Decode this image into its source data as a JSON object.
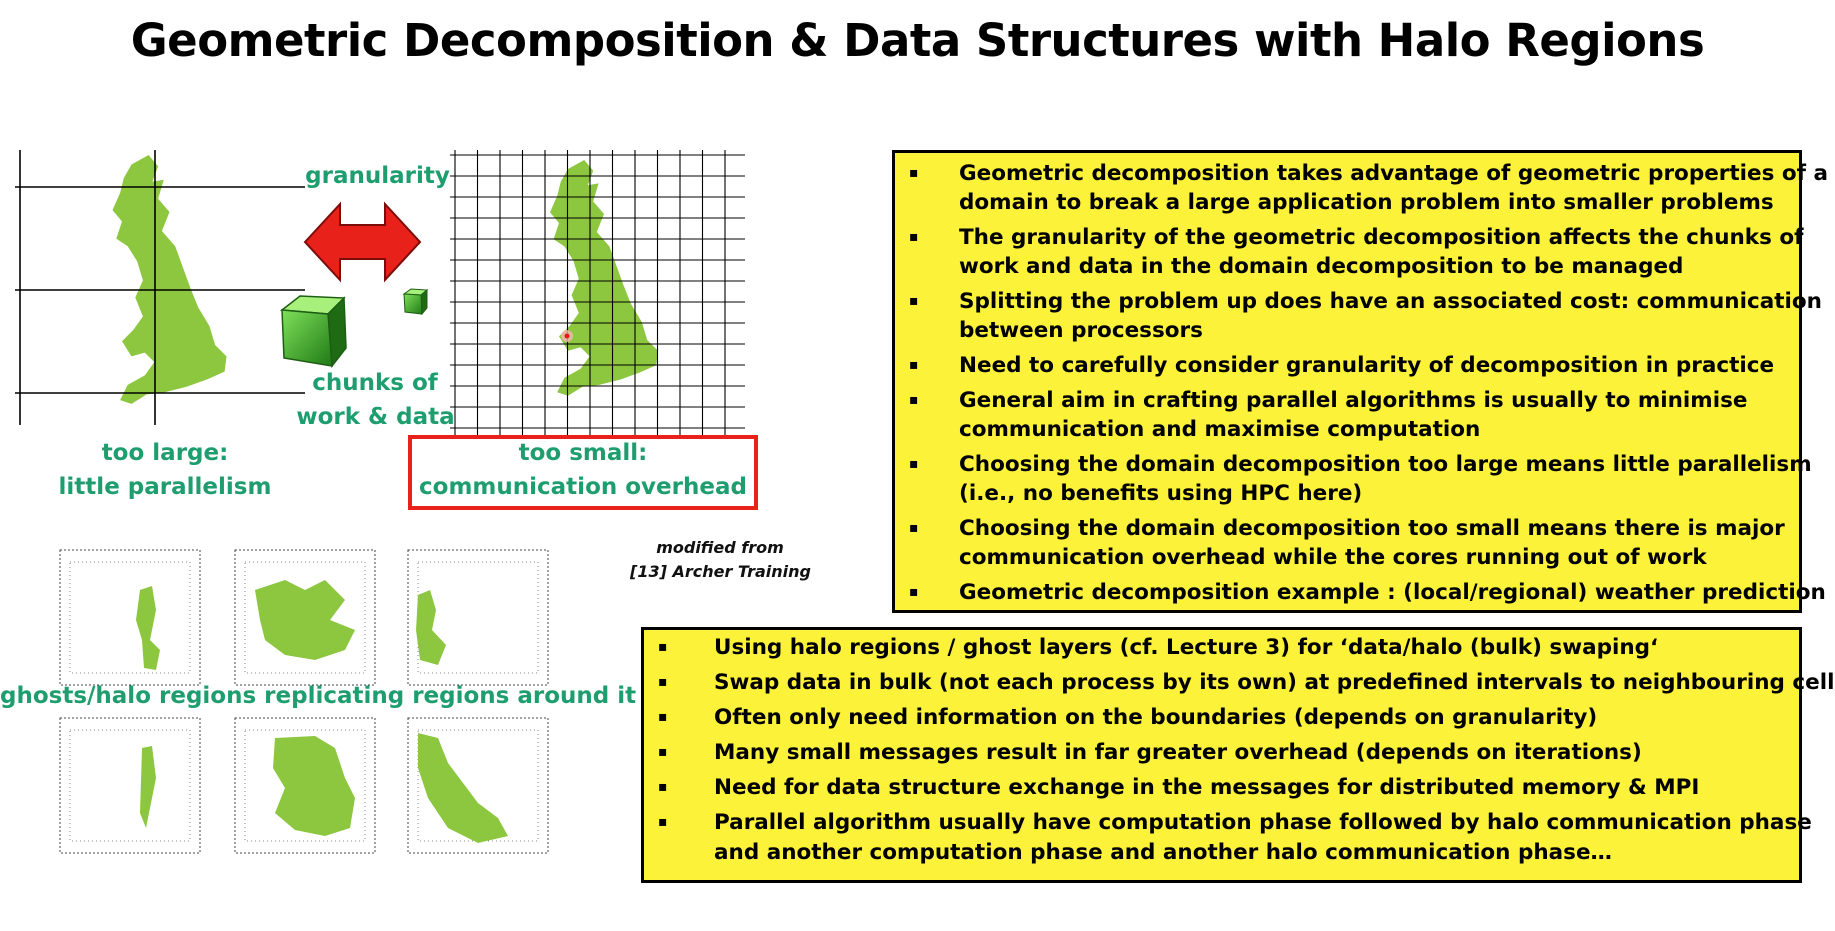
{
  "title": "Geometric Decomposition & Data Structures with Halo Regions",
  "diagram": {
    "granularity_label": "granularity",
    "chunks_label_line1": "chunks of",
    "chunks_label_line2": "work & data",
    "too_large_line1": "too large:",
    "too_large_line2": "little parallelism",
    "too_small_line1": "too small:",
    "too_small_line2": "communication overhead",
    "halo_label": "ghosts/halo regions replicating regions around it",
    "source_line1": "modified from",
    "source_line2": "[13] Archer Training"
  },
  "colors": {
    "map_green": "#8dc63f",
    "label_green": "#1e9e6f",
    "box_yellow": "#fdf23a",
    "arrow_red": "#e8211b"
  },
  "box1": {
    "items": [
      {
        "bullet": "▪",
        "line1": "Geometric decomposition takes advantage of geometric properties of a",
        "line2": "domain to break a large application problem into smaller problems"
      },
      {
        "bullet": "▪",
        "line1": "The granularity of the geometric decomposition affects the chunks of",
        "line2": "work and data in the domain decomposition to be managed"
      },
      {
        "bullet": "▪",
        "line1": "Splitting the problem up does have an associated cost: communication",
        "line2": "between processors"
      },
      {
        "bullet": "▪",
        "line1": "Need to carefully consider granularity of decomposition in practice",
        "line2": ""
      },
      {
        "bullet": "▪",
        "line1": "General aim in crafting parallel algorithms is usually to minimise",
        "line2": "communication and maximise computation"
      },
      {
        "bullet": "▪",
        "line1": "Choosing the domain decomposition too large means little parallelism",
        "line2": "(i.e., no benefits using HPC here)"
      },
      {
        "bullet": "▪",
        "line1": "Choosing the domain decomposition too small means there is major",
        "line2": "communication overhead while the cores running out of work"
      },
      {
        "bullet": "▪",
        "line1": "Geometric decomposition example : (local/regional) weather prediction",
        "line2": ""
      }
    ]
  },
  "box2": {
    "items": [
      {
        "bullet": "▪",
        "line1": "Using halo regions / ghost layers (cf. Lecture 3) for ‘data/halo (bulk) swaping‘",
        "line2": ""
      },
      {
        "bullet": "▪",
        "line1": "Swap data in bulk (not each process by its own) at predefined intervals to neighbouring cells",
        "line2": ""
      },
      {
        "bullet": "▪",
        "line1": "Often only need information on the boundaries (depends on granularity)",
        "line2": ""
      },
      {
        "bullet": "▪",
        "line1": "Many small messages result in far greater overhead (depends on iterations)",
        "line2": ""
      },
      {
        "bullet": "▪",
        "line1": "Need for data structure exchange in the messages for distributed memory & MPI",
        "line2": ""
      },
      {
        "bullet": "▪",
        "line1": "Parallel algorithm usually have computation phase followed by halo communication phase",
        "line2": "and another computation phase and another halo communication phase…"
      }
    ]
  }
}
